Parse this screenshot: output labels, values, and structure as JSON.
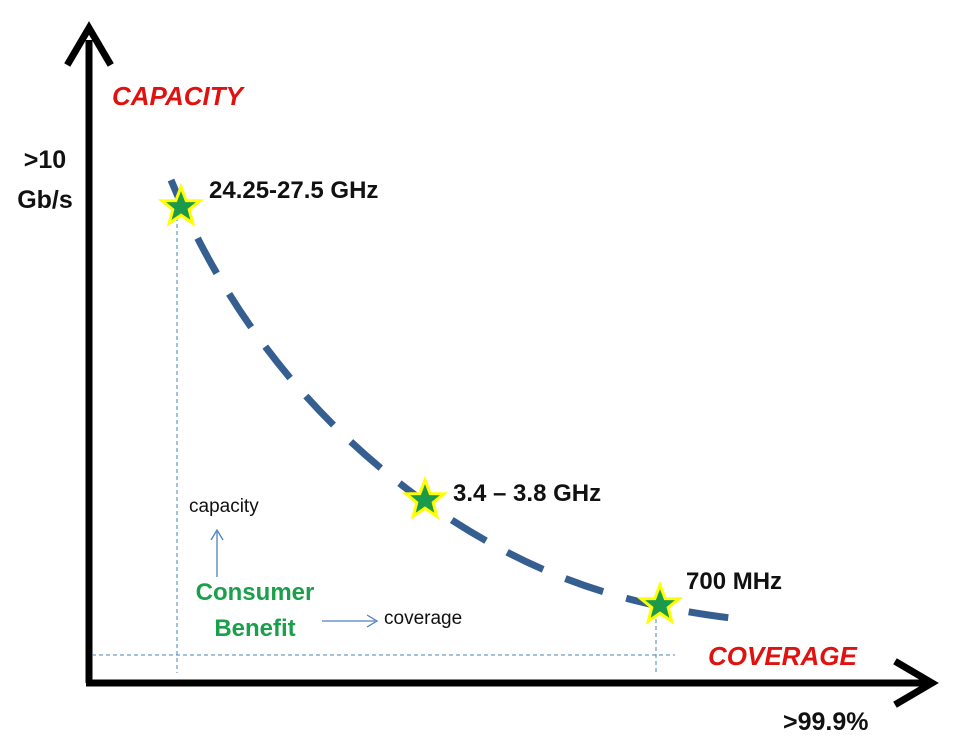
{
  "axes": {
    "y_title": "CAPACITY",
    "x_title": "COVERAGE",
    "y_max_line1": ">10",
    "y_max_line2": "Gb/s",
    "x_max": ">99.9%"
  },
  "bands": [
    {
      "label": "24.25-27.5  GHz"
    },
    {
      "label": "3.4 – 3.8 GHz"
    },
    {
      "label": "700 MHz"
    }
  ],
  "legend": {
    "benefit_line1": "Consumer",
    "benefit_line2": "Benefit",
    "capacity_label": "capacity",
    "coverage_label": "coverage"
  },
  "colors": {
    "axis_title": "#e0120f",
    "curve": "#365f91",
    "star_fill": "#1a9a4a",
    "star_outline": "#ffff00",
    "benefit_text": "#1aa04a",
    "guide_lines": "#4f81bd"
  },
  "icons": {
    "marker": "star-icon",
    "arrow": "arrow-icon"
  }
}
